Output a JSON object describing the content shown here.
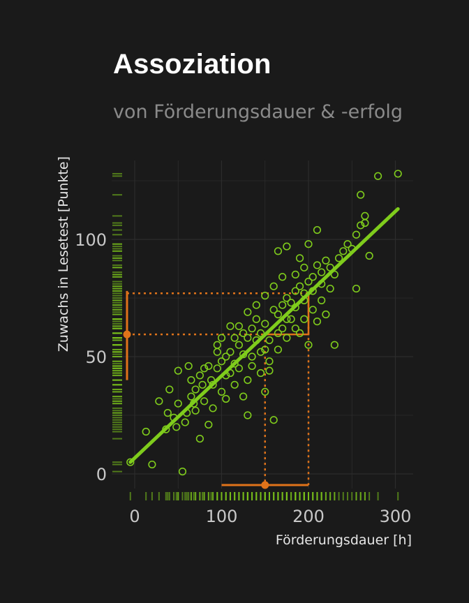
{
  "header": {
    "title": "Assoziation",
    "subtitle": "von Förderungsdauer & -erfolg"
  },
  "colors": {
    "background": "#1a1a1a",
    "points": "#7fcc1c",
    "accent": "#e0731a",
    "grid": "#2c2c2c",
    "text": "#c8c8c8"
  },
  "chart_data": {
    "type": "scatter",
    "title": "Assoziation",
    "subtitle": "von Förderungsdauer & -erfolg",
    "xlabel": "Förderungsdauer [h]",
    "ylabel": "Zuwachs in Lesetest [Punkte]",
    "xlim": [
      -20,
      320
    ],
    "ylim": [
      -3,
      131
    ],
    "x_ticks": [
      0,
      100,
      200,
      300
    ],
    "y_ticks": [
      0,
      50,
      100
    ],
    "grid": true,
    "points": [
      [
        -5,
        5
      ],
      [
        20,
        4
      ],
      [
        55,
        1
      ],
      [
        13,
        18
      ],
      [
        28,
        31
      ],
      [
        40,
        36
      ],
      [
        50,
        44
      ],
      [
        62,
        46
      ],
      [
        36,
        19
      ],
      [
        45,
        24
      ],
      [
        50,
        30
      ],
      [
        60,
        26
      ],
      [
        75,
        15
      ],
      [
        85,
        21
      ],
      [
        65,
        40
      ],
      [
        70,
        36
      ],
      [
        80,
        45
      ],
      [
        90,
        38
      ],
      [
        95,
        55
      ],
      [
        100,
        48
      ],
      [
        105,
        42
      ],
      [
        110,
        52
      ],
      [
        115,
        47
      ],
      [
        120,
        55
      ],
      [
        125,
        60
      ],
      [
        130,
        58
      ],
      [
        135,
        62
      ],
      [
        140,
        66
      ],
      [
        145,
        60
      ],
      [
        150,
        64
      ],
      [
        155,
        57
      ],
      [
        160,
        70
      ],
      [
        165,
        68
      ],
      [
        170,
        72
      ],
      [
        175,
        75
      ],
      [
        180,
        73
      ],
      [
        185,
        78
      ],
      [
        190,
        80
      ],
      [
        195,
        77
      ],
      [
        200,
        82
      ],
      [
        205,
        84
      ],
      [
        210,
        89
      ],
      [
        215,
        86
      ],
      [
        220,
        91
      ],
      [
        225,
        88
      ],
      [
        230,
        85
      ],
      [
        235,
        92
      ],
      [
        240,
        95
      ],
      [
        245,
        98
      ],
      [
        250,
        96
      ],
      [
        255,
        102
      ],
      [
        260,
        106
      ],
      [
        265,
        110
      ],
      [
        270,
        93
      ],
      [
        165,
        95
      ],
      [
        175,
        97
      ],
      [
        200,
        98
      ],
      [
        190,
        92
      ],
      [
        210,
        104
      ],
      [
        230,
        55
      ],
      [
        255,
        79
      ],
      [
        280,
        127
      ],
      [
        303,
        128
      ],
      [
        260,
        119
      ],
      [
        265,
        107
      ],
      [
        115,
        38
      ],
      [
        125,
        33
      ],
      [
        130,
        25
      ],
      [
        150,
        35
      ],
      [
        160,
        23
      ],
      [
        110,
        63
      ],
      [
        100,
        58
      ],
      [
        95,
        52
      ],
      [
        85,
        46
      ],
      [
        80,
        31
      ],
      [
        70,
        27
      ],
      [
        65,
        33
      ],
      [
        75,
        42
      ],
      [
        90,
        28
      ],
      [
        105,
        32
      ],
      [
        120,
        45
      ],
      [
        135,
        50
      ],
      [
        145,
        43
      ],
      [
        155,
        48
      ],
      [
        165,
        53
      ],
      [
        175,
        58
      ],
      [
        185,
        62
      ],
      [
        195,
        66
      ],
      [
        205,
        70
      ],
      [
        215,
        74
      ],
      [
        225,
        79
      ],
      [
        140,
        72
      ],
      [
        150,
        76
      ],
      [
        130,
        69
      ],
      [
        170,
        62
      ],
      [
        180,
        66
      ],
      [
        190,
        60
      ],
      [
        200,
        55
      ],
      [
        210,
        65
      ],
      [
        220,
        68
      ],
      [
        160,
        80
      ],
      [
        170,
        84
      ],
      [
        185,
        85
      ],
      [
        195,
        88
      ],
      [
        150,
        53
      ],
      [
        140,
        57
      ],
      [
        120,
        63
      ],
      [
        110,
        43
      ],
      [
        100,
        35
      ],
      [
        130,
        40
      ],
      [
        145,
        52
      ],
      [
        155,
        44
      ],
      [
        165,
        60
      ],
      [
        175,
        66
      ],
      [
        185,
        71
      ],
      [
        195,
        74
      ],
      [
        205,
        78
      ],
      [
        215,
        81
      ],
      [
        125,
        51
      ],
      [
        135,
        46
      ],
      [
        115,
        58
      ],
      [
        105,
        50
      ],
      [
        95,
        45
      ],
      [
        88,
        40
      ],
      [
        78,
        38
      ],
      [
        68,
        30
      ],
      [
        58,
        22
      ],
      [
        48,
        20
      ],
      [
        38,
        26
      ]
    ],
    "regression_line": {
      "x": [
        -5,
        303
      ],
      "y": [
        5,
        113
      ]
    },
    "highlight": {
      "x_interval": [
        100,
        200
      ],
      "x_point": 150,
      "y_interval": [
        40,
        78
      ],
      "y_point": 59.5,
      "reference_y_upper": 77
    }
  }
}
